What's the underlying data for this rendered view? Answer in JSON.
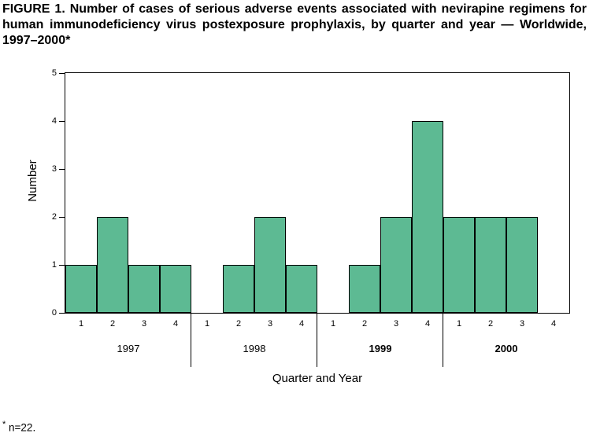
{
  "figure": {
    "title": "FIGURE 1. Number of cases of serious adverse events associated with nevirapine regimens for human immunodeficiency virus postexposure prophylaxis, by quarter and year — Worldwide, 1997–2000*",
    "footnote_symbol": "*",
    "footnote_text": " n=22."
  },
  "chart_data": {
    "type": "bar",
    "title": "FIGURE 1. Number of cases of serious adverse events associated with nevirapine regimens for human immunodeficiency virus postexposure prophylaxis, by quarter and year — Worldwide, 1997–2000*",
    "xlabel": "Quarter and Year",
    "ylabel": "Number",
    "ylim": [
      0,
      5
    ],
    "yticks": [
      0,
      1,
      2,
      3,
      4,
      5
    ],
    "grid": false,
    "legend": "none",
    "bar_color": "#5dba93",
    "bar_border_color": "#000000",
    "groups": [
      {
        "year": "1997",
        "bold": false,
        "quarters": [
          "1",
          "2",
          "3",
          "4"
        ],
        "values": [
          1,
          2,
          1,
          1
        ]
      },
      {
        "year": "1998",
        "bold": false,
        "quarters": [
          "1",
          "2",
          "3",
          "4"
        ],
        "values": [
          0,
          1,
          2,
          1
        ]
      },
      {
        "year": "1999",
        "bold": true,
        "quarters": [
          "1",
          "2",
          "3",
          "4"
        ],
        "values": [
          0,
          1,
          2,
          4
        ]
      },
      {
        "year": "2000",
        "bold": true,
        "quarters": [
          "1",
          "2",
          "3",
          "4"
        ],
        "values": [
          2,
          2,
          2,
          0
        ]
      }
    ]
  }
}
